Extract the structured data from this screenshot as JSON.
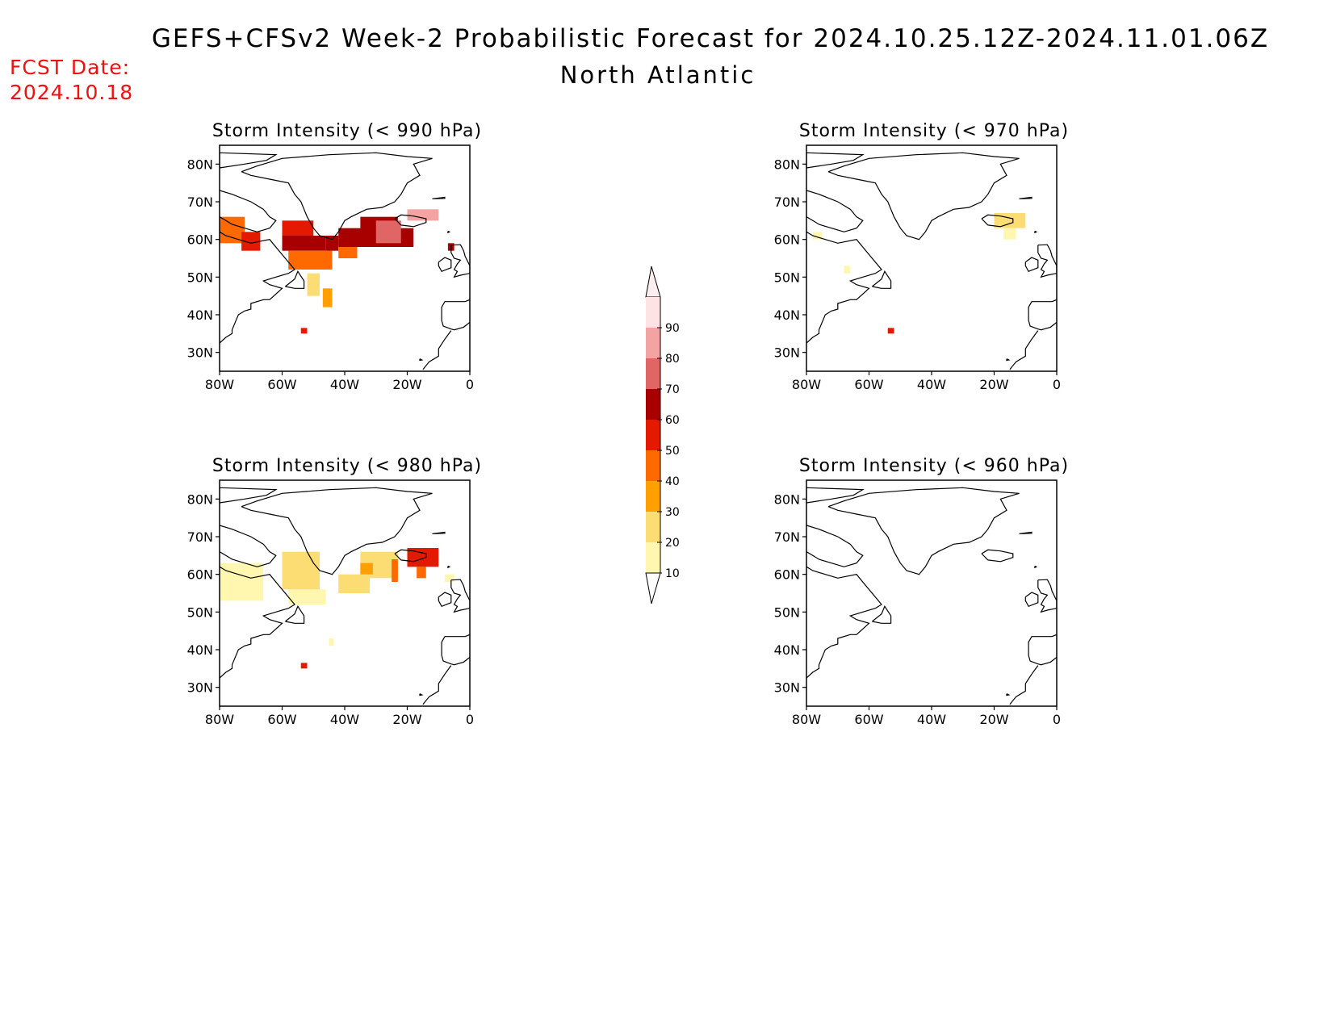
{
  "header": {
    "title": "GEFS+CFSv2 Week-2 Probabilistic Forecast for 2024.10.25.12Z-2024.11.01.06Z",
    "subtitle": "North Atlantic",
    "fcst_label": "FCST Date:",
    "fcst_date": "2024.10.18"
  },
  "axes": {
    "lat_labels": [
      "80N",
      "70N",
      "60N",
      "50N",
      "40N",
      "30N"
    ],
    "lon_labels": [
      "80W",
      "60W",
      "40W",
      "20W",
      "0"
    ],
    "lat_range": [
      25,
      85
    ],
    "lon_range": [
      -80,
      0
    ]
  },
  "panels": [
    {
      "title": "Storm Intensity (< 990 hPa)",
      "cells": [
        {
          "lon": -80,
          "lat": 59,
          "w": 8,
          "h": 7,
          "p": 40
        },
        {
          "lon": -73,
          "lat": 57,
          "w": 6,
          "h": 5,
          "p": 50
        },
        {
          "lon": -60,
          "lat": 61,
          "w": 10,
          "h": 4,
          "p": 50
        },
        {
          "lon": -60,
          "lat": 57,
          "w": 14,
          "h": 4,
          "p": 60
        },
        {
          "lon": -58,
          "lat": 52,
          "w": 14,
          "h": 5,
          "p": 40
        },
        {
          "lon": -46,
          "lat": 57,
          "w": 4,
          "h": 4,
          "p": 60
        },
        {
          "lon": -42,
          "lat": 55,
          "w": 6,
          "h": 6,
          "p": 40
        },
        {
          "lon": -42,
          "lat": 58,
          "w": 24,
          "h": 5,
          "p": 60
        },
        {
          "lon": -35,
          "lat": 62,
          "w": 12,
          "h": 4,
          "p": 60
        },
        {
          "lon": -30,
          "lat": 59,
          "w": 8,
          "h": 6,
          "p": 70
        },
        {
          "lon": -20,
          "lat": 65,
          "w": 10,
          "h": 3,
          "p": 80
        },
        {
          "lon": -52,
          "lat": 45,
          "w": 4,
          "h": 6,
          "p": 20
        },
        {
          "lon": -47,
          "lat": 42,
          "w": 3,
          "h": 5,
          "p": 30
        },
        {
          "lon": -54,
          "lat": 35,
          "w": 2,
          "h": 1.5,
          "p": 50
        },
        {
          "lon": -7,
          "lat": 57,
          "w": 2,
          "h": 2,
          "p": 60
        }
      ]
    },
    {
      "title": "Storm Intensity (< 970 hPa)",
      "cells": [
        {
          "lon": -20,
          "lat": 63,
          "w": 10,
          "h": 4,
          "p": 20
        },
        {
          "lon": -17,
          "lat": 60,
          "w": 4,
          "h": 3,
          "p": 10
        },
        {
          "lon": -78,
          "lat": 60,
          "w": 3,
          "h": 2,
          "p": 10
        },
        {
          "lon": -68,
          "lat": 51,
          "w": 2,
          "h": 2,
          "p": 10
        },
        {
          "lon": -54,
          "lat": 35,
          "w": 2,
          "h": 1.5,
          "p": 50
        }
      ]
    },
    {
      "title": "Storm Intensity (< 980 hPa)",
      "cells": [
        {
          "lon": -80,
          "lat": 53,
          "w": 14,
          "h": 10,
          "p": 10
        },
        {
          "lon": -60,
          "lat": 56,
          "w": 12,
          "h": 10,
          "p": 20
        },
        {
          "lon": -58,
          "lat": 52,
          "w": 12,
          "h": 4,
          "p": 10
        },
        {
          "lon": -42,
          "lat": 55,
          "w": 10,
          "h": 5,
          "p": 20
        },
        {
          "lon": -35,
          "lat": 59,
          "w": 12,
          "h": 7,
          "p": 20
        },
        {
          "lon": -35,
          "lat": 60,
          "w": 4,
          "h": 3,
          "p": 30
        },
        {
          "lon": -25,
          "lat": 58,
          "w": 2,
          "h": 6,
          "p": 40
        },
        {
          "lon": -20,
          "lat": 62,
          "w": 10,
          "h": 5,
          "p": 50
        },
        {
          "lon": -17,
          "lat": 59,
          "w": 3,
          "h": 3,
          "p": 40
        },
        {
          "lon": -8,
          "lat": 58,
          "w": 3,
          "h": 2,
          "p": 10
        },
        {
          "lon": -45,
          "lat": 41,
          "w": 1.5,
          "h": 2,
          "p": 10
        },
        {
          "lon": -54,
          "lat": 35,
          "w": 2,
          "h": 1.5,
          "p": 50
        }
      ]
    },
    {
      "title": "Storm Intensity (< 960 hPa)",
      "cells": []
    }
  ],
  "colorbar": {
    "labels": [
      "90",
      "80",
      "70",
      "60",
      "50",
      "40",
      "30",
      "20",
      "10"
    ],
    "colors": [
      "#fde3e3",
      "#f4a3a3",
      "#e06565",
      "#a80000",
      "#e41a00",
      "#ff6a00",
      "#ffa000",
      "#fcdd73",
      "#fff7b0"
    ]
  }
}
